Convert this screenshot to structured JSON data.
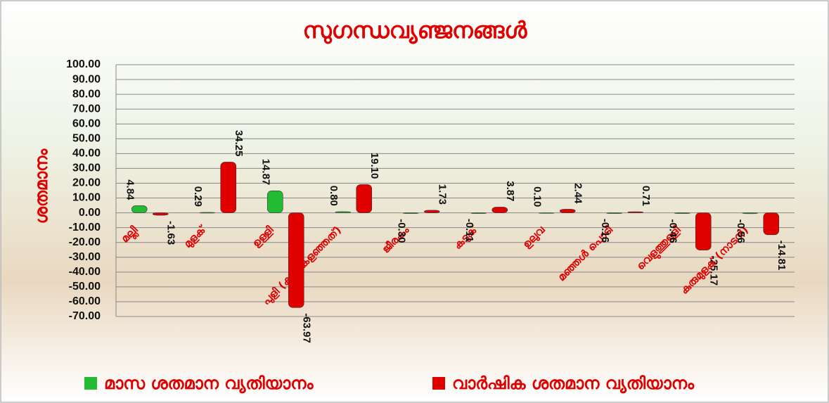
{
  "chart_data": {
    "type": "bar",
    "title": "സുഗന്ധവ്യഞ്ജനങ്ങൾ",
    "y_label": "ശതമാനം",
    "categories": [
      "മല്ലി",
      "മുളക്",
      "ഉള്ളി",
      "പുളി (കുരു കളഞ്ഞത്)",
      "ജീരകം",
      "കടുക്",
      "ഉലുവ",
      "മഞ്ഞൾ പൊടി",
      "വെളുത്തുള്ളി",
      "കുരുമുളക് (നാടൻ)"
    ],
    "series": [
      {
        "name": "മാസ ശതമാന വ്യതിയാനം",
        "color": "#22bb33",
        "values": [
          4.84,
          0.29,
          14.87,
          0.8,
          -0.3,
          -0.11,
          0.1,
          -0.16,
          -0.46,
          -0.56
        ],
        "value_labels": [
          "4.84",
          "0.29",
          "14.87",
          "0.80",
          "-0.30",
          "-0.11",
          "0.10",
          "-0.16",
          "-0.46",
          "-0.56"
        ]
      },
      {
        "name": "വാർഷിക ശതമാന വ്യതിയാനം",
        "color": "#e00000",
        "values": [
          -1.63,
          34.25,
          -63.97,
          19.1,
          1.73,
          3.87,
          2.44,
          0.71,
          -25.17,
          -14.81
        ],
        "value_labels": [
          "-1.63",
          "34.25",
          "-63.97",
          "19.10",
          "1.73",
          "3.87",
          "2.44",
          "0.71",
          "-25.17",
          "-14.81"
        ]
      }
    ],
    "ylim": [
      -70,
      100
    ],
    "yticks": [
      {
        "value": 100,
        "label": "100.00"
      },
      {
        "value": 90,
        "label": "90.00"
      },
      {
        "value": 80,
        "label": "80.00"
      },
      {
        "value": 70,
        "label": "70.00"
      },
      {
        "value": 60,
        "label": "60.00"
      },
      {
        "value": 50,
        "label": "50.00"
      },
      {
        "value": 40,
        "label": "40.00"
      },
      {
        "value": 30,
        "label": "30.00"
      },
      {
        "value": 20,
        "label": "20.00"
      },
      {
        "value": 10,
        "label": "10.00"
      },
      {
        "value": 0,
        "label": "0.00"
      },
      {
        "value": -10,
        "label": "-10.00"
      },
      {
        "value": -20,
        "label": "-20.00"
      },
      {
        "value": -30,
        "label": "-30.00"
      },
      {
        "value": -40,
        "label": "-40.00"
      },
      {
        "value": -50,
        "label": "-50.00"
      },
      {
        "value": -60,
        "label": "-60.00"
      },
      {
        "value": -70,
        "label": "-70.00"
      }
    ],
    "grid": true
  }
}
